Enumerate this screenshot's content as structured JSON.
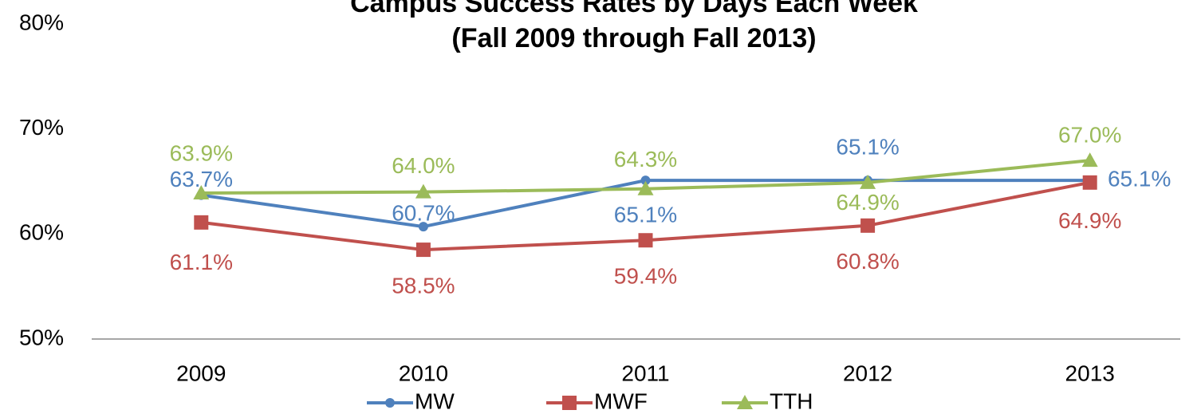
{
  "chart_data": {
    "type": "line",
    "title": "Campus Success Rates by Days Each Week",
    "subtitle": "(Fall 2009 through Fall 2013)",
    "categories": [
      "2009",
      "2010",
      "2011",
      "2012",
      "2013"
    ],
    "series": [
      {
        "name": "MW",
        "color": "#4f81bd",
        "marker": "circle",
        "values": [
          63.7,
          60.7,
          65.1,
          65.1,
          65.1
        ],
        "value_labels": [
          "63.7%",
          "60.7%",
          "65.1%",
          "65.1%",
          "65.1%"
        ]
      },
      {
        "name": "MWF",
        "color": "#c0504d",
        "marker": "square",
        "values": [
          61.1,
          58.5,
          59.4,
          60.8,
          64.9
        ],
        "value_labels": [
          "61.1%",
          "58.5%",
          "59.4%",
          "60.8%",
          "64.9%"
        ]
      },
      {
        "name": "TTH",
        "color": "#9bbb59",
        "marker": "triangle",
        "values": [
          63.9,
          64.0,
          64.3,
          64.9,
          67.0
        ],
        "value_labels": [
          "63.9%",
          "64.0%",
          "64.3%",
          "64.9%",
          "67.0%"
        ]
      }
    ],
    "ylim": [
      50,
      80
    ],
    "yticks": [
      {
        "value": 50,
        "label": "50%"
      },
      {
        "value": 60,
        "label": "60%"
      },
      {
        "value": 70,
        "label": "70%"
      },
      {
        "value": 80,
        "label": "80%"
      }
    ],
    "grid": false,
    "legend": "bottom"
  }
}
